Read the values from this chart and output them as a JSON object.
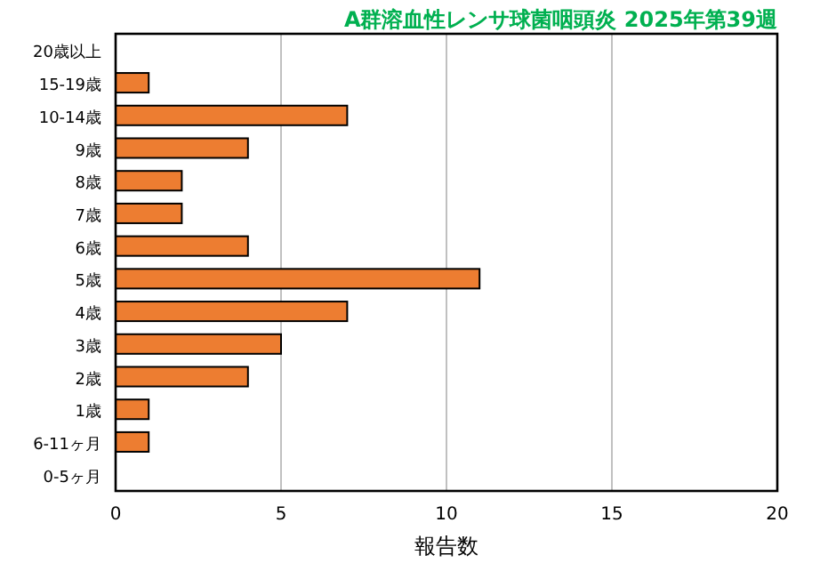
{
  "chart_data": {
    "type": "bar",
    "orientation": "horizontal",
    "title": "A群溶血性レンサ球菌咽頭炎 2025年第39週",
    "xlabel": "報告数",
    "categories": [
      "20歳以上",
      "15-19歳",
      "10-14歳",
      "9歳",
      "8歳",
      "7歳",
      "6歳",
      "5歳",
      "4歳",
      "3歳",
      "2歳",
      "1歳",
      "6-11ヶ月",
      "0-5ヶ月"
    ],
    "values": [
      0,
      1,
      7,
      4,
      2,
      2,
      4,
      11,
      7,
      5,
      4,
      1,
      1,
      0
    ],
    "color": "#ed7d31",
    "xlim": [
      0,
      20
    ],
    "xticks": [
      0,
      5,
      10,
      15,
      20
    ],
    "grid": "x"
  }
}
